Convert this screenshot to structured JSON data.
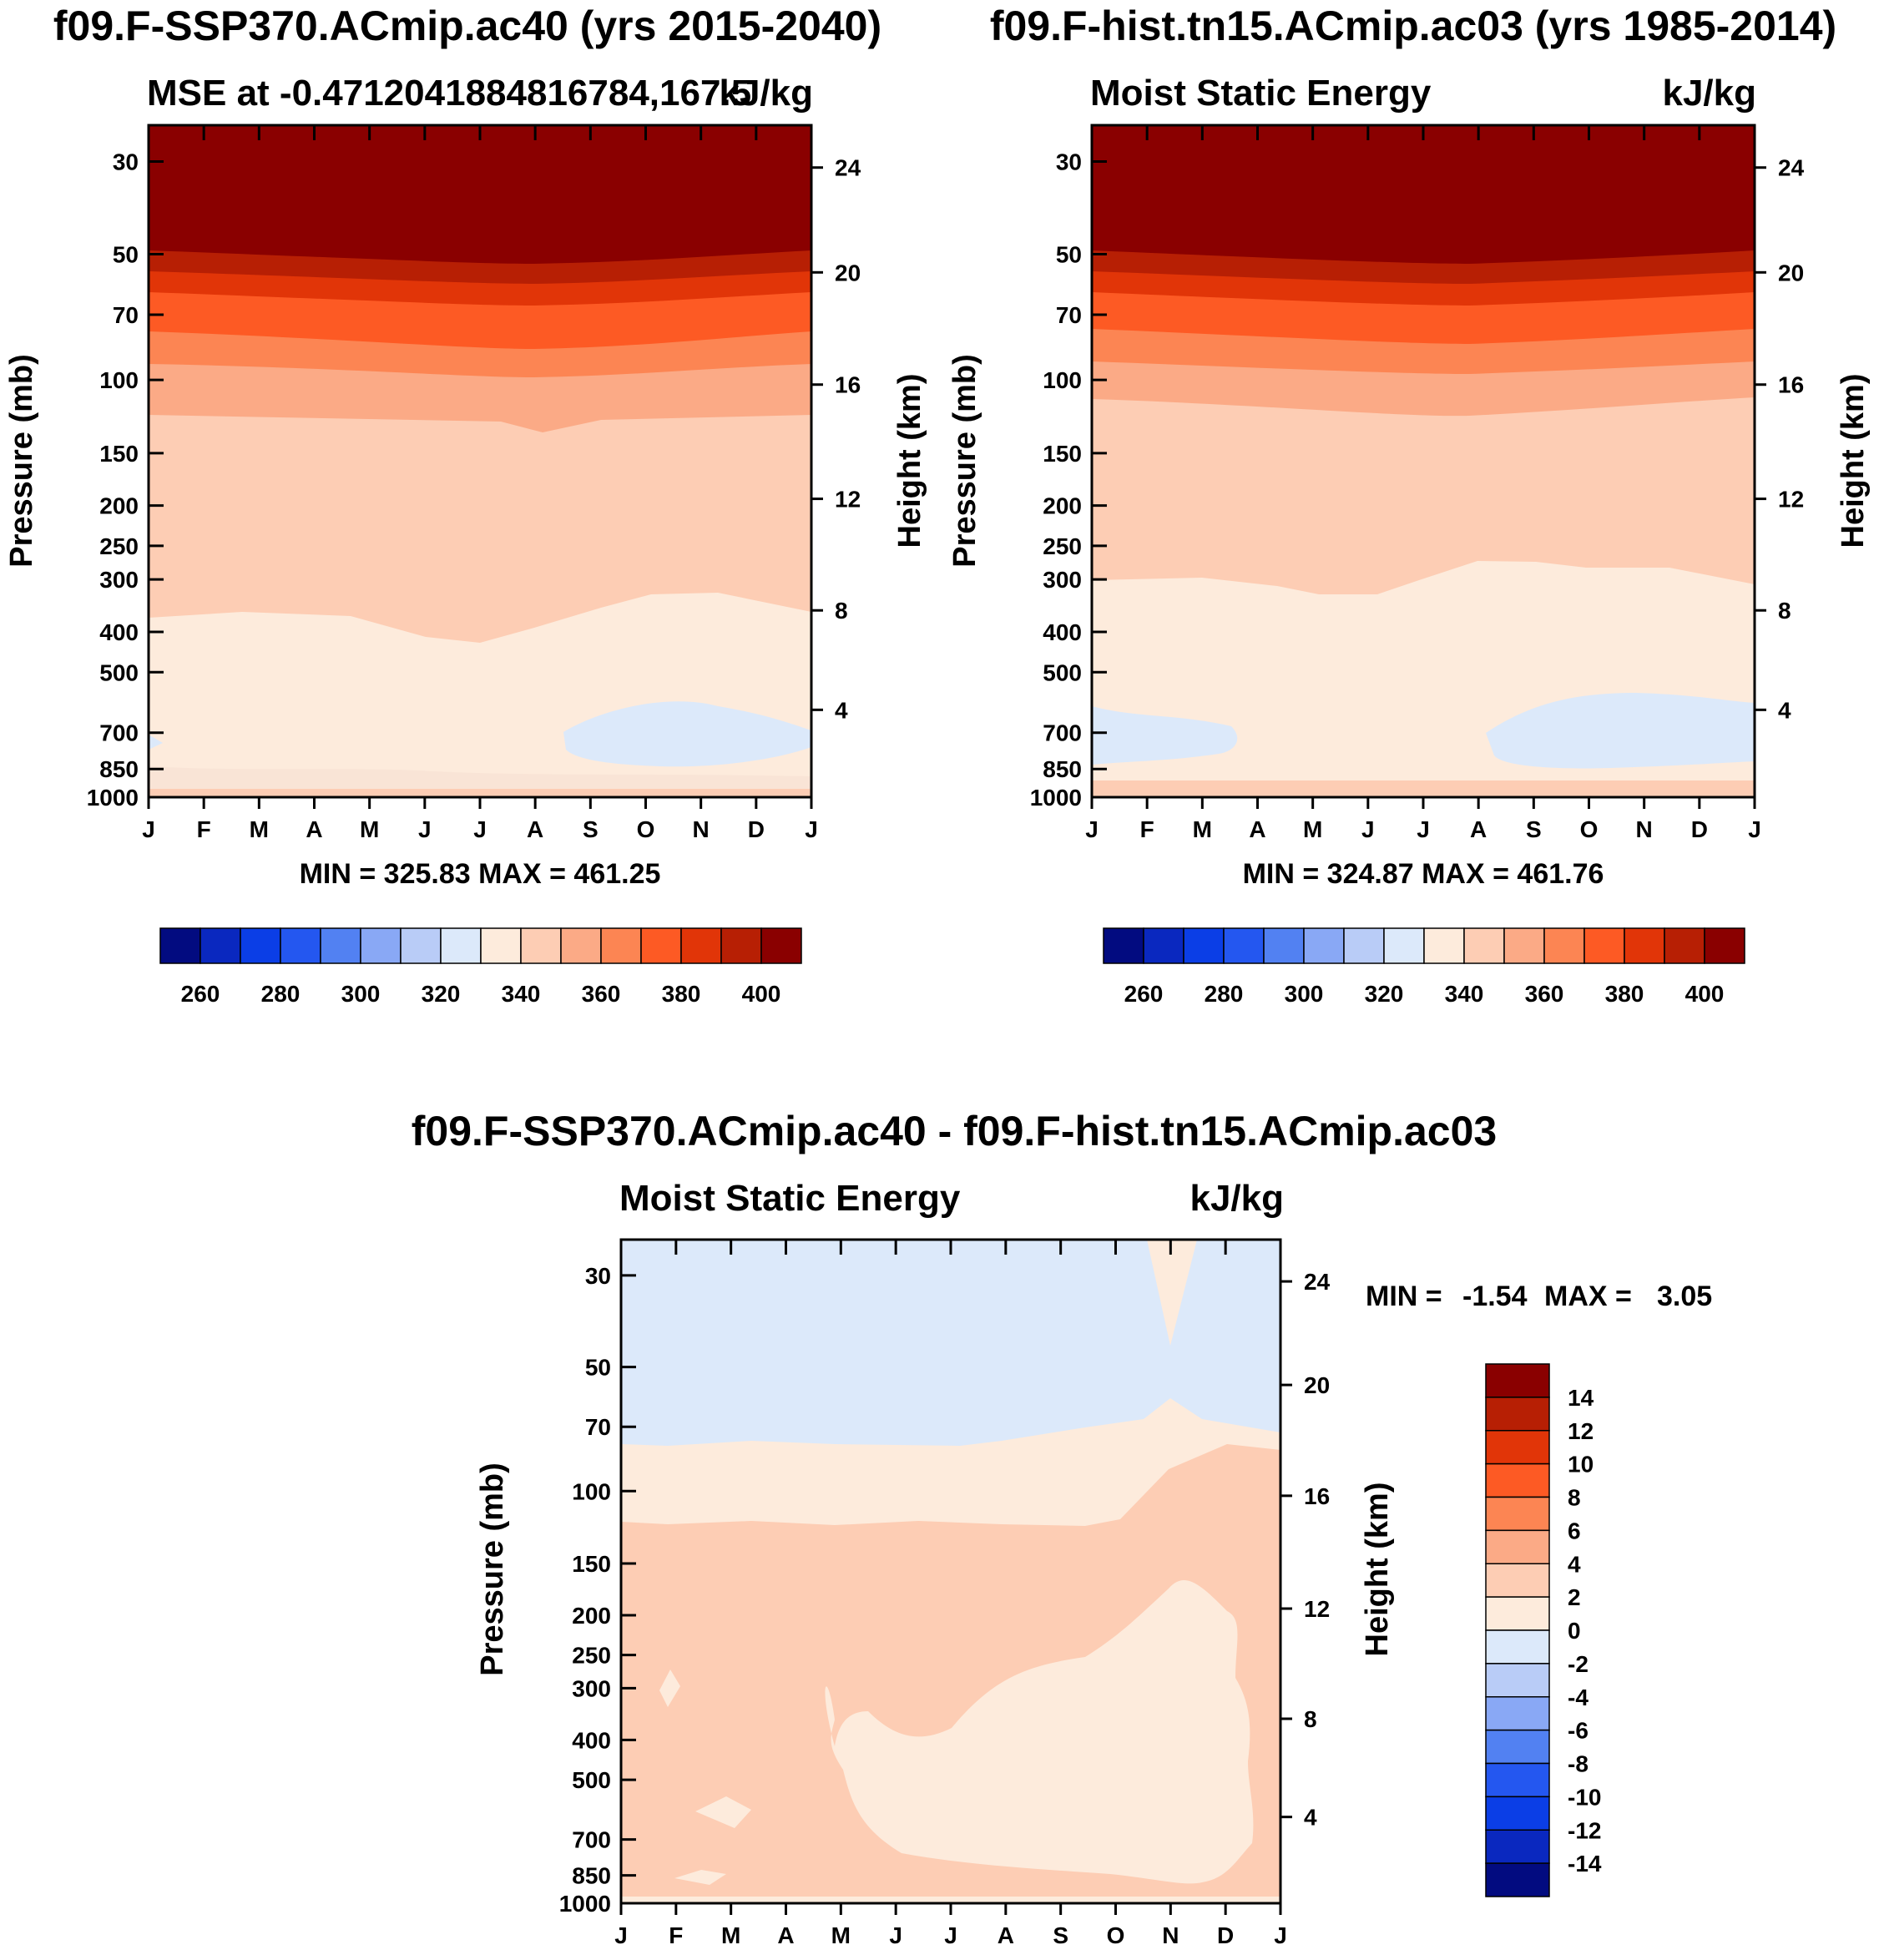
{
  "chart_data": [
    {
      "type": "contour",
      "title": "f09.F-SSP370.ACmip.ac40 (yrs 2015-2040)",
      "subtitle_left": "MSE at -0.4712041884816784,167.5",
      "subtitle_right": "kJ/kg",
      "ylabel_left": "Pressure (mb)",
      "ylabel_right": "Height (km)",
      "x_ticks": [
        "J",
        "F",
        "M",
        "A",
        "M",
        "J",
        "J",
        "A",
        "S",
        "O",
        "N",
        "D",
        "J"
      ],
      "pressure_ticks": [
        "30",
        "50",
        "70",
        "100",
        "150",
        "200",
        "250",
        "300",
        "400",
        "500",
        "700",
        "850",
        "1000"
      ],
      "height_ticks": [
        "24",
        "20",
        "16",
        "12",
        "8",
        "4"
      ],
      "stats": "MIN = 325.83 MAX = 461.25",
      "colorbar_labels": [
        "260",
        "280",
        "300",
        "320",
        "340",
        "360",
        "380",
        "400"
      ],
      "levels": [
        250,
        260,
        270,
        280,
        290,
        300,
        310,
        320,
        330,
        340,
        350,
        360,
        370,
        380,
        390,
        400,
        410
      ],
      "colors": [
        "#020B80",
        "#0A28BF",
        "#0B3EE6",
        "#2457F0",
        "#5281F2",
        "#89A8F5",
        "#B9CCF7",
        "#DCE9FA",
        "#FDEBDC",
        "#FDCDB4",
        "#FBAA86",
        "#FC8553",
        "#FD5A24",
        "#E13508",
        "#B71F04",
        "#8A0000"
      ]
    },
    {
      "type": "contour",
      "title": "f09.F-hist.tn15.ACmip.ac03 (yrs 1985-2014)",
      "subtitle_left": "Moist Static Energy",
      "subtitle_right": "kJ/kg",
      "ylabel_left": "Pressure (mb)",
      "ylabel_right": "Height (km)",
      "x_ticks": [
        "J",
        "F",
        "M",
        "A",
        "M",
        "J",
        "J",
        "A",
        "S",
        "O",
        "N",
        "D",
        "J"
      ],
      "pressure_ticks": [
        "30",
        "50",
        "70",
        "100",
        "150",
        "200",
        "250",
        "300",
        "400",
        "500",
        "700",
        "850",
        "1000"
      ],
      "height_ticks": [
        "24",
        "20",
        "16",
        "12",
        "8",
        "4"
      ],
      "stats": "MIN = 324.87 MAX = 461.76",
      "colorbar_labels": [
        "260",
        "280",
        "300",
        "320",
        "340",
        "360",
        "380",
        "400"
      ]
    },
    {
      "type": "contour",
      "title": "f09.F-SSP370.ACmip.ac40 - f09.F-hist.tn15.ACmip.ac03",
      "subtitle_left": "Moist Static Energy",
      "subtitle_right": "kJ/kg",
      "ylabel_left": "Pressure (mb)",
      "ylabel_right": "Height (km)",
      "x_ticks": [
        "J",
        "F",
        "M",
        "A",
        "M",
        "J",
        "J",
        "A",
        "S",
        "O",
        "N",
        "D",
        "J"
      ],
      "pressure_ticks": [
        "30",
        "50",
        "70",
        "100",
        "150",
        "200",
        "250",
        "300",
        "400",
        "500",
        "700",
        "850",
        "1000"
      ],
      "height_ticks": [
        "24",
        "20",
        "16",
        "12",
        "8",
        "4"
      ],
      "stats_min_label": "MIN =",
      "stats_min": "-1.54",
      "stats_max_label": "MAX =",
      "stats_max": "3.05",
      "colorbar_labels": [
        "14",
        "12",
        "10",
        "8",
        "6",
        "4",
        "2",
        "0",
        "-2",
        "-4",
        "-6",
        "-8",
        "-10",
        "-12",
        "-14"
      ],
      "levels": [
        -16,
        -14,
        -12,
        -10,
        -8,
        -6,
        -4,
        -2,
        0,
        2,
        4,
        6,
        8,
        10,
        12,
        14,
        16
      ],
      "colors": [
        "#020B80",
        "#0A28BF",
        "#0B3EE6",
        "#2457F0",
        "#5281F2",
        "#89A8F5",
        "#B9CCF7",
        "#DCE9FA",
        "#FDEBDC",
        "#FDCDB4",
        "#FBAA86",
        "#FC8553",
        "#FD5A24",
        "#E13508",
        "#B71F04",
        "#8A0000"
      ]
    }
  ]
}
